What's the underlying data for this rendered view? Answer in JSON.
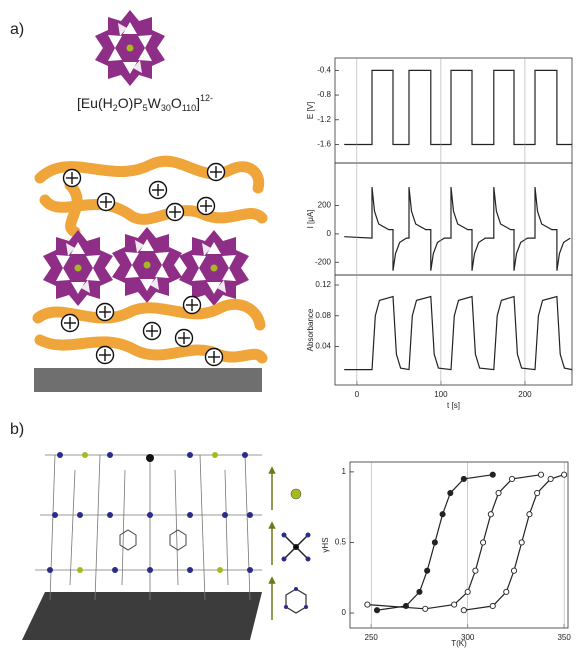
{
  "panel_labels": [
    "a)",
    "b)"
  ],
  "formula": [
    "[Eu(H",
    "2",
    "O)P",
    "5",
    "W",
    "30",
    "O",
    "110",
    "]",
    "12-"
  ],
  "chart_data": [
    {
      "type": "line",
      "ylabel": "E [V]",
      "xlim": [
        -26,
        256
      ],
      "ylim": [
        -1.9,
        -0.2
      ],
      "yticks": [
        -0.4,
        -0.8,
        -1.2,
        -1.6
      ],
      "x": [
        -15,
        18,
        18,
        43,
        43,
        62,
        62,
        88,
        88,
        112,
        112,
        137,
        137,
        163,
        163,
        187,
        187,
        212,
        212,
        238,
        238,
        256
      ],
      "series": [
        {
          "color": "#222222",
          "values": [
            -1.6,
            -1.6,
            -0.4,
            -0.4,
            -1.6,
            -1.6,
            -0.4,
            -0.4,
            -1.6,
            -1.6,
            -0.4,
            -0.4,
            -1.6,
            -1.6,
            -0.4,
            -0.4,
            -1.6,
            -1.6,
            -0.4,
            -0.4,
            -1.6,
            -1.6
          ]
        }
      ]
    },
    {
      "type": "line",
      "ylabel": "I [μA]",
      "xlim": [
        -26,
        256
      ],
      "ylim": [
        -290,
        500
      ],
      "yticks": [
        200,
        0,
        -200
      ],
      "x": [
        -15,
        18,
        18,
        21,
        26,
        38,
        43,
        43,
        46,
        51,
        59,
        62,
        62,
        65,
        70,
        82,
        88,
        88,
        91,
        96,
        104,
        112,
        112,
        115,
        120,
        132,
        137,
        137,
        140,
        145,
        153,
        163,
        163,
        166,
        171,
        183,
        187,
        187,
        190,
        195,
        203,
        212,
        212,
        215,
        220,
        232,
        238,
        238,
        241,
        246,
        254
      ],
      "series": [
        {
          "color": "#222222",
          "values": [
            -20,
            -30,
            330,
            160,
            70,
            30,
            30,
            -260,
            -140,
            -60,
            -30,
            -30,
            330,
            160,
            70,
            30,
            30,
            -260,
            -140,
            -60,
            -30,
            -30,
            330,
            160,
            70,
            30,
            30,
            -260,
            -140,
            -60,
            -30,
            -30,
            330,
            160,
            70,
            30,
            30,
            -260,
            -140,
            -60,
            -30,
            -30,
            330,
            160,
            70,
            30,
            30,
            -260,
            -140,
            -60,
            -30
          ]
        }
      ]
    },
    {
      "type": "line",
      "ylabel": "Absorbance",
      "xlabel": "t [s]",
      "xlim": [
        -26,
        256
      ],
      "ylim": [
        -0.01,
        0.133
      ],
      "yticks": [
        0.04,
        0.08,
        0.12
      ],
      "xticks": [
        0,
        100,
        200
      ],
      "x": [
        -15,
        18,
        22,
        27,
        43,
        47,
        52,
        62,
        66,
        71,
        88,
        92,
        97,
        112,
        116,
        121,
        137,
        141,
        146,
        163,
        167,
        172,
        187,
        191,
        196,
        212,
        216,
        221,
        238,
        242,
        247,
        256
      ],
      "series": [
        {
          "color": "#222222",
          "values": [
            0.01,
            0.01,
            0.08,
            0.1,
            0.105,
            0.03,
            0.012,
            0.01,
            0.08,
            0.1,
            0.105,
            0.03,
            0.012,
            0.01,
            0.08,
            0.1,
            0.105,
            0.03,
            0.012,
            0.01,
            0.08,
            0.1,
            0.105,
            0.03,
            0.012,
            0.01,
            0.08,
            0.1,
            0.105,
            0.03,
            0.012,
            0.01
          ]
        }
      ]
    },
    {
      "type": "line",
      "ylabel": "γHS",
      "xlabel": "T(K)",
      "xlim": [
        239,
        352
      ],
      "ylim": [
        -0.106,
        1.07
      ],
      "xticks": [
        250,
        300,
        350
      ],
      "yticks": [
        0.0,
        0.5,
        1.0
      ],
      "series": [
        {
          "color": "#222222",
          "marker": "filled",
          "x": [
            253,
            268,
            275,
            279,
            283,
            287,
            291,
            298,
            313
          ],
          "values": [
            0.02,
            0.05,
            0.15,
            0.3,
            0.5,
            0.7,
            0.85,
            0.95,
            0.98
          ]
        },
        {
          "color": "#222222",
          "marker": "open",
          "x": [
            248,
            278,
            293,
            300,
            304,
            308,
            312,
            316,
            323,
            338
          ],
          "values": [
            0.06,
            0.03,
            0.06,
            0.15,
            0.3,
            0.5,
            0.7,
            0.85,
            0.95,
            0.98
          ]
        },
        {
          "color": "#222222",
          "marker": "open",
          "x": [
            298,
            313,
            320,
            324,
            328,
            332,
            336,
            343,
            350
          ],
          "values": [
            0.02,
            0.05,
            0.15,
            0.3,
            0.5,
            0.7,
            0.85,
            0.95,
            0.98
          ]
        }
      ]
    }
  ]
}
